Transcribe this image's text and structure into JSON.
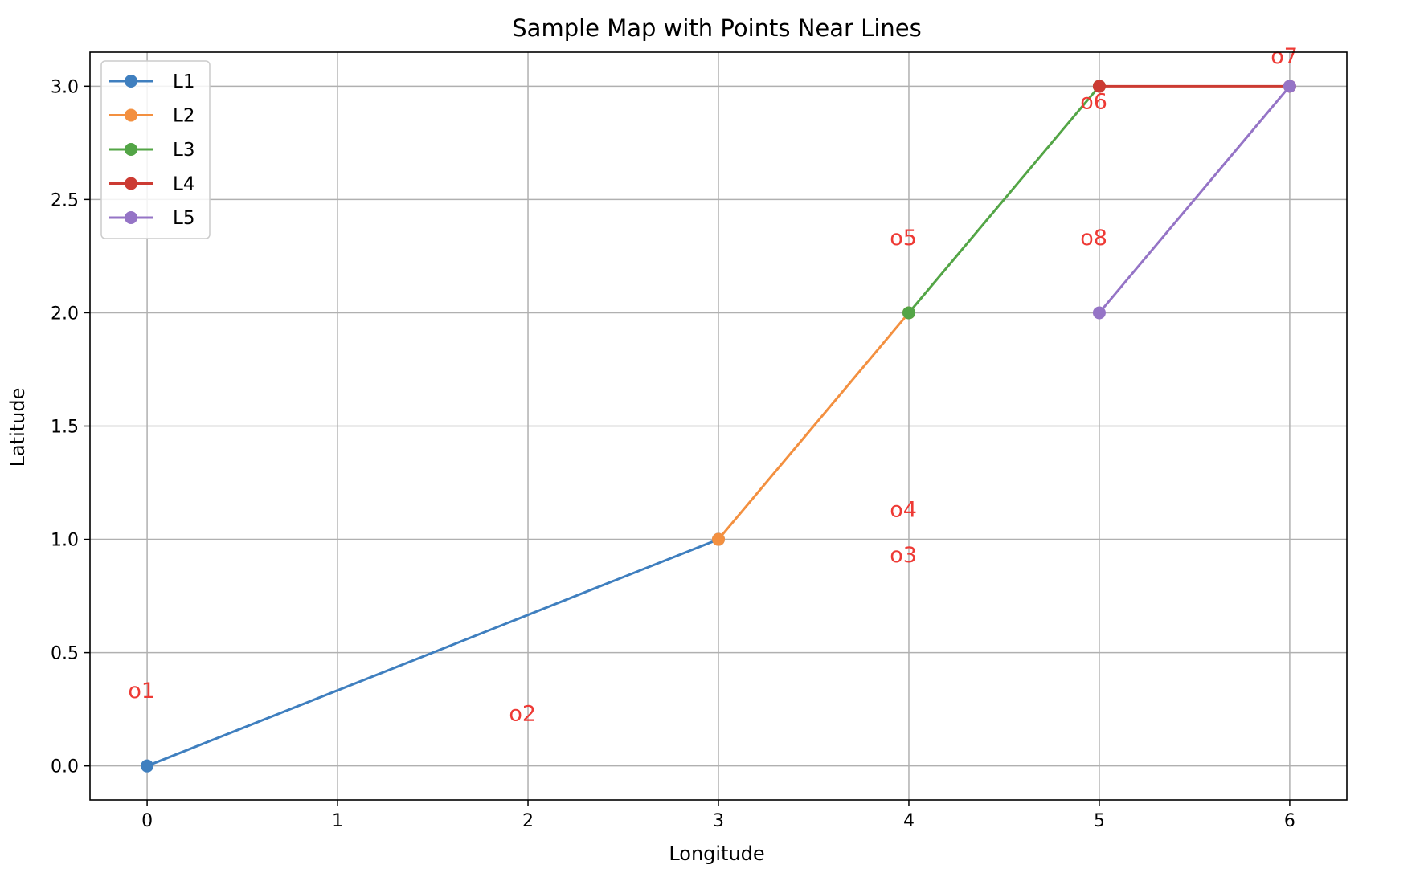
{
  "chart_data": {
    "type": "line",
    "title": "Sample Map with Points Near Lines",
    "xlabel": "Longitude",
    "ylabel": "Latitude",
    "xlim": [
      -0.3,
      6.3
    ],
    "ylim": [
      -0.15,
      3.15
    ],
    "xticks": [
      0,
      1,
      2,
      3,
      4,
      5,
      6
    ],
    "xtick_labels": [
      "0",
      "1",
      "2",
      "3",
      "4",
      "5",
      "6"
    ],
    "yticks": [
      0,
      0.5,
      1,
      1.5,
      2,
      2.5,
      3
    ],
    "ytick_labels": [
      "0.0",
      "0.5",
      "1.0",
      "1.5",
      "2.0",
      "2.5",
      "3.0"
    ],
    "grid": true,
    "legend_position": "top-left",
    "series": [
      {
        "name": "L1",
        "color": "#3f7fbf",
        "points": [
          [
            0,
            0
          ],
          [
            3,
            1
          ]
        ]
      },
      {
        "name": "L2",
        "color": "#f39040",
        "points": [
          [
            3,
            1
          ],
          [
            4,
            2
          ]
        ]
      },
      {
        "name": "L3",
        "color": "#53a546",
        "points": [
          [
            4,
            2
          ],
          [
            5,
            3
          ]
        ]
      },
      {
        "name": "L4",
        "color": "#cc3b33",
        "points": [
          [
            5,
            3
          ],
          [
            6,
            3
          ]
        ]
      },
      {
        "name": "L5",
        "color": "#9574c6",
        "points": [
          [
            5,
            2
          ],
          [
            6,
            3
          ]
        ]
      }
    ],
    "annotation_color": "#ee3a35",
    "annotations": [
      {
        "text": "o1",
        "x": -0.1,
        "y": 0.3
      },
      {
        "text": "o2",
        "x": 1.9,
        "y": 0.2
      },
      {
        "text": "o3",
        "x": 3.9,
        "y": 0.9
      },
      {
        "text": "o4",
        "x": 3.9,
        "y": 1.1
      },
      {
        "text": "o5",
        "x": 3.9,
        "y": 2.3
      },
      {
        "text": "o6",
        "x": 4.9,
        "y": 2.9
      },
      {
        "text": "o7",
        "x": 5.9,
        "y": 3.1
      },
      {
        "text": "o8",
        "x": 4.9,
        "y": 2.3
      }
    ]
  }
}
